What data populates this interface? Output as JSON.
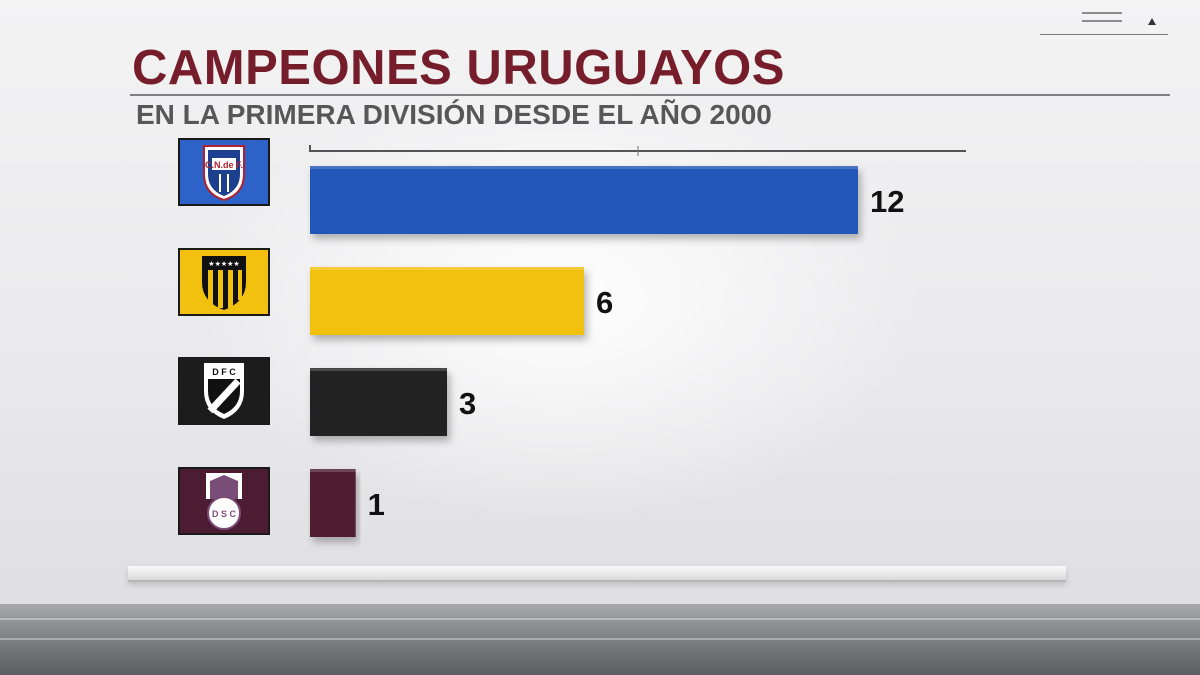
{
  "header": {
    "title": "CAMPEONES URUGUAYOS",
    "subtitle": "EN LA PRIMERA DIVISIÓN DESDE EL AÑO 2000"
  },
  "chart_data": {
    "type": "bar",
    "orientation": "horizontal",
    "title": "CAMPEONES URUGUAYOS",
    "subtitle": "EN LA PRIMERA DIVISIÓN DESDE EL AÑO 2000",
    "xlabel": "",
    "ylabel": "",
    "xlim": [
      0,
      12
    ],
    "grid": false,
    "data_labels": true,
    "categories": [
      "Nacional",
      "Peñarol",
      "Danubio",
      "Defensor Sporting"
    ],
    "values": [
      12,
      6,
      3,
      1
    ],
    "logos": [
      {
        "icon": "nacional-crest-icon",
        "text": "C.N.de F."
      },
      {
        "icon": "penarol-crest-icon"
      },
      {
        "icon": "danubio-crest-icon",
        "text": "D F C"
      },
      {
        "icon": "defensor-crest-icon",
        "text": "D S C"
      }
    ],
    "colors": [
      "#2157b8",
      "#f2c10f",
      "#222222",
      "#4f1f33"
    ]
  }
}
